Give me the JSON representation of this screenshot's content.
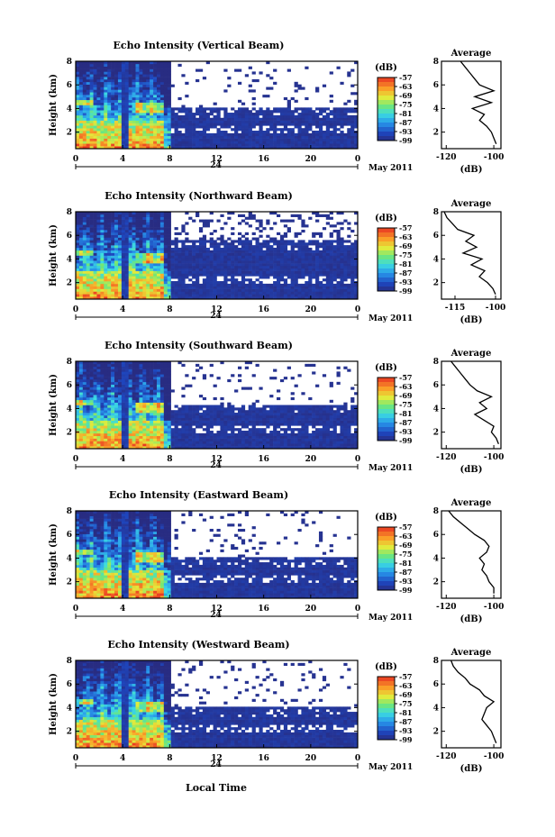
{
  "figure": {
    "x_axis_label": "Local Time",
    "date_label": "May 2011",
    "date_marker": "24",
    "colorbar_unit": "(dB)",
    "avg_title": "Average",
    "avg_xlabel": "(dB)"
  },
  "chart_data": [
    {
      "type": "heatmap",
      "title": "Echo Intensity (Vertical Beam)",
      "ylabel": "Height (km)",
      "xlabel": "Local Time",
      "x_ticks": [
        "0",
        "4",
        "8",
        "12",
        "16",
        "20",
        "0"
      ],
      "x_range_hours": [
        0,
        24
      ],
      "y_ticks": [
        "2",
        "4",
        "6",
        "8"
      ],
      "y_range_km": [
        0.6,
        8
      ],
      "colorbar": {
        "label": "(dB)",
        "ticks": [
          "-57",
          "-63",
          "-69",
          "-75",
          "-81",
          "-87",
          "-93",
          "-99"
        ],
        "range": [
          -99,
          -57
        ]
      },
      "colors": {
        "low": "#2b2f85",
        "high": "#e83222"
      },
      "average_profile": {
        "title": "Average",
        "xlabel": "(dB)",
        "x_ticks": [
          "-120",
          "-100"
        ],
        "xlim": [
          -122,
          -97
        ],
        "height_km": [
          1.0,
          1.5,
          2.0,
          2.5,
          3.0,
          3.5,
          4.0,
          4.5,
          5.0,
          5.5,
          6.0,
          6.5,
          7.0,
          7.5,
          8.0
        ],
        "values_db": [
          -99,
          -100,
          -101,
          -103,
          -106,
          -104,
          -109,
          -101,
          -108,
          -100,
          -106,
          -108,
          -110,
          -112,
          -114
        ]
      }
    },
    {
      "type": "heatmap",
      "title": "Echo Intensity (Northward Beam)",
      "ylabel": "Height (km)",
      "xlabel": "Local Time",
      "x_ticks": [
        "0",
        "4",
        "8",
        "12",
        "16",
        "20",
        "0"
      ],
      "x_range_hours": [
        0,
        24
      ],
      "y_ticks": [
        "2",
        "4",
        "6",
        "8"
      ],
      "y_range_km": [
        0.6,
        8
      ],
      "colorbar": {
        "label": "(dB)",
        "ticks": [
          "-57",
          "-63",
          "-69",
          "-75",
          "-81",
          "-87",
          "-93",
          "-99"
        ],
        "range": [
          -99,
          -57
        ]
      },
      "colors": {
        "low": "#2b2f85",
        "high": "#e83222"
      },
      "average_profile": {
        "title": "Average",
        "xlabel": "(dB)",
        "x_ticks": [
          "-115",
          "-100"
        ],
        "xlim": [
          -120,
          -98
        ],
        "height_km": [
          1.0,
          1.5,
          2.0,
          2.5,
          3.0,
          3.5,
          4.0,
          4.5,
          5.0,
          5.5,
          6.0,
          6.5,
          7.0,
          7.5,
          8.0
        ],
        "values_db": [
          -100,
          -101,
          -103,
          -106,
          -104,
          -109,
          -105,
          -112,
          -107,
          -111,
          -108,
          -114,
          -116,
          -118,
          -119
        ]
      }
    },
    {
      "type": "heatmap",
      "title": "Echo Intensity (Southward Beam)",
      "ylabel": "Height (km)",
      "xlabel": "Local Time",
      "x_ticks": [
        "0",
        "4",
        "8",
        "12",
        "16",
        "20",
        "0"
      ],
      "x_range_hours": [
        0,
        24
      ],
      "y_ticks": [
        "2",
        "4",
        "6",
        "8"
      ],
      "y_range_km": [
        0.6,
        8
      ],
      "colorbar": {
        "label": "(dB)",
        "ticks": [
          "-57",
          "-63",
          "-69",
          "-75",
          "-81",
          "-87",
          "-93",
          "-99"
        ],
        "range": [
          -99,
          -57
        ]
      },
      "colors": {
        "low": "#2b2f85",
        "high": "#e83222"
      },
      "average_profile": {
        "title": "Average",
        "xlabel": "(dB)",
        "x_ticks": [
          "-120",
          "-100"
        ],
        "xlim": [
          -122,
          -97
        ],
        "height_km": [
          1.0,
          1.5,
          2.0,
          2.5,
          3.0,
          3.5,
          4.0,
          4.5,
          5.0,
          5.5,
          6.0,
          6.5,
          7.0,
          7.5,
          8.0
        ],
        "values_db": [
          -98,
          -99,
          -101,
          -100,
          -104,
          -108,
          -103,
          -106,
          -101,
          -107,
          -110,
          -112,
          -114,
          -116,
          -118
        ]
      }
    },
    {
      "type": "heatmap",
      "title": "Echo Intensity (Eastward Beam)",
      "ylabel": "Height (km)",
      "xlabel": "Local Time",
      "x_ticks": [
        "0",
        "4",
        "8",
        "12",
        "16",
        "20",
        "0"
      ],
      "x_range_hours": [
        0,
        24
      ],
      "y_ticks": [
        "2",
        "4",
        "6",
        "8"
      ],
      "y_range_km": [
        0.6,
        8
      ],
      "colorbar": {
        "label": "(dB)",
        "ticks": [
          "-57",
          "-63",
          "-69",
          "-75",
          "-81",
          "-87",
          "-93",
          "-99"
        ],
        "range": [
          -99,
          -57
        ]
      },
      "colors": {
        "low": "#2b2f85",
        "high": "#e83222"
      },
      "average_profile": {
        "title": "Average",
        "xlabel": "(dB)",
        "x_ticks": [
          "-120",
          "-100"
        ],
        "xlim": [
          -122,
          -97
        ],
        "height_km": [
          1.0,
          1.5,
          2.0,
          2.5,
          3.0,
          3.5,
          4.0,
          4.5,
          5.0,
          5.5,
          6.0,
          6.5,
          7.0,
          7.5,
          8.0
        ],
        "values_db": [
          -100,
          -100,
          -102,
          -103,
          -105,
          -104,
          -106,
          -103,
          -102,
          -104,
          -108,
          -111,
          -114,
          -117,
          -119
        ]
      }
    },
    {
      "type": "heatmap",
      "title": "Echo Intensity (Westward Beam)",
      "ylabel": "Height (km)",
      "xlabel": "Local Time",
      "x_ticks": [
        "0",
        "4",
        "8",
        "12",
        "16",
        "20",
        "0"
      ],
      "x_range_hours": [
        0,
        24
      ],
      "y_ticks": [
        "2",
        "4",
        "6",
        "8"
      ],
      "y_range_km": [
        0.6,
        8
      ],
      "colorbar": {
        "label": "(dB)",
        "ticks": [
          "-57",
          "-63",
          "-69",
          "-75",
          "-81",
          "-87",
          "-93",
          "-99"
        ],
        "range": [
          -99,
          -57
        ]
      },
      "colors": {
        "low": "#2b2f85",
        "high": "#e83222"
      },
      "average_profile": {
        "title": "Average",
        "xlabel": "(dB)",
        "x_ticks": [
          "-120",
          "-100"
        ],
        "xlim": [
          -122,
          -97
        ],
        "height_km": [
          1.0,
          1.5,
          2.0,
          2.5,
          3.0,
          3.5,
          4.0,
          4.5,
          5.0,
          5.5,
          6.0,
          6.5,
          7.0,
          7.5,
          8.0
        ],
        "values_db": [
          -99,
          -100,
          -101,
          -103,
          -105,
          -104,
          -103,
          -100,
          -104,
          -106,
          -110,
          -112,
          -115,
          -117,
          -118
        ]
      }
    }
  ]
}
